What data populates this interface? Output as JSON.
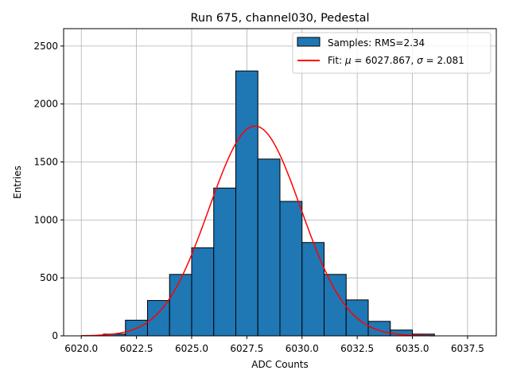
{
  "chart_data": {
    "type": "bar",
    "title": "Run 675, channel030, Pedestal",
    "xlabel": "ADC Counts",
    "ylabel": "Entries",
    "xlim": [
      6019.2,
      6038.8
    ],
    "ylim": [
      0,
      2650
    ],
    "xticks": [
      6020.0,
      6022.5,
      6025.0,
      6027.5,
      6030.0,
      6032.5,
      6035.0,
      6037.5
    ],
    "xtick_labels": [
      "6020.0",
      "6022.5",
      "6025.0",
      "6027.5",
      "6030.0",
      "6032.5",
      "6035.0",
      "6037.5"
    ],
    "yticks": [
      0,
      500,
      1000,
      1500,
      2000,
      2500
    ],
    "ytick_labels": [
      "0",
      "500",
      "1000",
      "1500",
      "2000",
      "2500"
    ],
    "grid": true,
    "legend_position": "top-right",
    "histogram": {
      "name": "Samples: RMS=2.34",
      "color": "#1f77b4",
      "edge_color": "#000000",
      "bins": [
        {
          "x0": 6020,
          "x1": 6021,
          "count": 0
        },
        {
          "x0": 6021,
          "x1": 6022,
          "count": 15
        },
        {
          "x0": 6022,
          "x1": 6023,
          "count": 135
        },
        {
          "x0": 6023,
          "x1": 6024,
          "count": 305
        },
        {
          "x0": 6024,
          "x1": 6025,
          "count": 530
        },
        {
          "x0": 6025,
          "x1": 6026,
          "count": 760
        },
        {
          "x0": 6026,
          "x1": 6027,
          "count": 1275
        },
        {
          "x0": 6027,
          "x1": 6028,
          "count": 2285
        },
        {
          "x0": 6028,
          "x1": 6029,
          "count": 1525
        },
        {
          "x0": 6029,
          "x1": 6030,
          "count": 1160
        },
        {
          "x0": 6030,
          "x1": 6031,
          "count": 805
        },
        {
          "x0": 6031,
          "x1": 6032,
          "count": 530
        },
        {
          "x0": 6032,
          "x1": 6033,
          "count": 310
        },
        {
          "x0": 6033,
          "x1": 6034,
          "count": 125
        },
        {
          "x0": 6034,
          "x1": 6035,
          "count": 50
        },
        {
          "x0": 6035,
          "x1": 6036,
          "count": 15
        },
        {
          "x0": 6036,
          "x1": 6037,
          "count": 0
        },
        {
          "x0": 6037,
          "x1": 6038,
          "count": 0
        }
      ]
    },
    "fit": {
      "name_prefix": "Fit: ",
      "mu_symbol": "μ",
      "mu_text": " = 6027.867, ",
      "sigma_symbol": "σ",
      "sigma_text": " = 2.081",
      "mu": 6027.867,
      "sigma": 2.081,
      "amplitude": 1810,
      "x_range": [
        6020,
        6036
      ],
      "color": "#ff0000"
    }
  }
}
